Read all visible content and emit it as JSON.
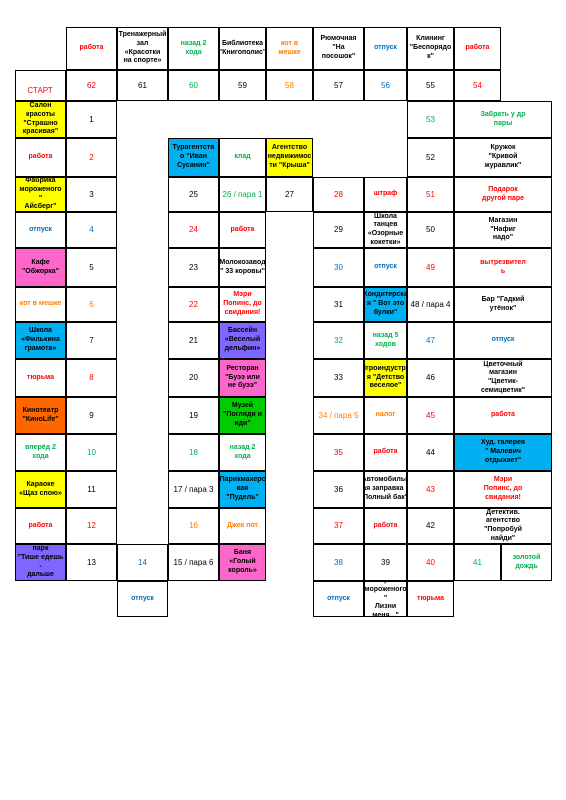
{
  "start_label": "СТАРТ",
  "colors": {
    "red": "#ff0000",
    "green": "#00b050",
    "orange": "#ff7f00",
    "blue": "#0070c0",
    "black": "#000000",
    "yellow": "#ffff00",
    "pink": "#ff66cc",
    "cyan": "#00b0f0",
    "purple": "#7f66ff",
    "orange_fill": "#ff6600",
    "green_fill": "#00cc00"
  },
  "cells": [
    {
      "text": "работа",
      "color": "red",
      "bold": true
    },
    {
      "text": "62",
      "color": "red"
    },
    {
      "text": "Тренажерный\nзал «Красотки\nна спорте»",
      "color": "black",
      "bold": true
    },
    {
      "text": "61",
      "color": "black"
    },
    {
      "text": "назад 2\nхода",
      "color": "green",
      "bold": true
    },
    {
      "text": "60",
      "color": "green"
    },
    {
      "text": "Библиотека\n\"Книгополис\"",
      "color": "black",
      "bold": true
    },
    {
      "text": "59",
      "color": "black"
    },
    {
      "text": "кот в\nмешке",
      "color": "orange",
      "bold": true
    },
    {
      "text": "58",
      "color": "orange"
    },
    {
      "text": "Рюмочная\n\"На\nпосошок\"",
      "color": "black",
      "bold": true
    },
    {
      "text": "57",
      "color": "black"
    },
    {
      "text": "отпуск",
      "color": "blue",
      "bold": true
    },
    {
      "text": "56",
      "color": "blue"
    },
    {
      "text": "Клининг\n\"Беспорядо\nк\"",
      "color": "black",
      "bold": true
    },
    {
      "text": "55",
      "color": "black"
    },
    {
      "text": "работа",
      "color": "red",
      "bold": true
    },
    {
      "text": "54",
      "color": "red"
    },
    {
      "text": "Салон\nкрасоты\n\"Страшно\nкрасивая\"",
      "color": "black",
      "bold": true,
      "fill": "yellow"
    },
    {
      "text": "1",
      "color": "black"
    },
    {
      "text": "53",
      "color": "green"
    },
    {
      "text": "Забрать у др\nпары",
      "color": "green",
      "bold": true
    },
    {
      "text": "работа",
      "color": "red",
      "bold": true
    },
    {
      "text": "2",
      "color": "red"
    },
    {
      "text": "Турагентств\nо \"Иван\nСусанин\"",
      "color": "black",
      "bold": true,
      "fill": "cyan"
    },
    {
      "text": "клад",
      "color": "green",
      "bold": true
    },
    {
      "text": "Агентство\nнедвижимос\nти \"Крыша\"",
      "color": "black",
      "bold": true,
      "fill": "yellow"
    },
    {
      "text": "52",
      "color": "black"
    },
    {
      "text": "Кружок\n\"Кривой\nжуравлик\"",
      "color": "black",
      "bold": true
    },
    {
      "text": "Фабрика\nмороженого \"\nАйсберг\"",
      "color": "black",
      "bold": true,
      "fill": "yellow"
    },
    {
      "text": "3",
      "color": "black"
    },
    {
      "text": "25",
      "color": "black"
    },
    {
      "text": "26 / пара 1",
      "color": "green"
    },
    {
      "text": "27",
      "color": "black"
    },
    {
      "text": "28",
      "color": "red"
    },
    {
      "text": "штраф",
      "color": "red",
      "bold": true
    },
    {
      "text": "51",
      "color": "red"
    },
    {
      "text": "Подарок\nдругой паре",
      "color": "red",
      "bold": true
    },
    {
      "text": "отпуск",
      "color": "blue",
      "bold": true
    },
    {
      "text": "4",
      "color": "blue"
    },
    {
      "text": "24",
      "color": "red"
    },
    {
      "text": "работа",
      "color": "red",
      "bold": true
    },
    {
      "text": "29",
      "color": "black"
    },
    {
      "text": "Школа\nтанцев\n«Озорные\nкокетки»",
      "color": "black",
      "bold": true
    },
    {
      "text": "50",
      "color": "black"
    },
    {
      "text": "Магазин\n\"Нафиг\nнадо\"",
      "color": "black",
      "bold": true
    },
    {
      "text": "Кафе\n\"Обжорка\"",
      "color": "black",
      "bold": true,
      "fill": "pink"
    },
    {
      "text": "5",
      "color": "black"
    },
    {
      "text": "23",
      "color": "black"
    },
    {
      "text": "Молокозавод\n\" 33 коровы\"",
      "color": "black",
      "bold": true
    },
    {
      "text": "30",
      "color": "blue"
    },
    {
      "text": "отпуск",
      "color": "blue",
      "bold": true
    },
    {
      "text": "49",
      "color": "red"
    },
    {
      "text": "вытрезвител\nь",
      "color": "red",
      "bold": true
    },
    {
      "text": "кот в мешке",
      "color": "orange",
      "bold": true
    },
    {
      "text": "6",
      "color": "orange"
    },
    {
      "text": "22",
      "color": "red"
    },
    {
      "text": "Мэри\nПопинс, до\nсвидания!",
      "color": "red",
      "bold": true
    },
    {
      "text": "31",
      "color": "black"
    },
    {
      "text": "Кондитерска\nя \" Вот это\nбулки\"",
      "color": "black",
      "bold": true,
      "fill": "cyan"
    },
    {
      "text": "48 / пара 4",
      "color": "black"
    },
    {
      "text": "Бар \"Гадкий\nутёнок\"",
      "color": "black",
      "bold": true
    },
    {
      "text": "Школа\n«Филькина\nграмота»",
      "color": "black",
      "bold": true,
      "fill": "cyan"
    },
    {
      "text": "7",
      "color": "black"
    },
    {
      "text": "21",
      "color": "black"
    },
    {
      "text": "Бассейн\n«Веселый\nдельфин»",
      "color": "black",
      "bold": true,
      "fill": "purple"
    },
    {
      "text": "32",
      "color": "green"
    },
    {
      "text": "назад 5\nходов",
      "color": "green",
      "bold": true
    },
    {
      "text": "47",
      "color": "blue"
    },
    {
      "text": "отпуск",
      "color": "blue",
      "bold": true
    },
    {
      "text": "тюрьма",
      "color": "red",
      "bold": true
    },
    {
      "text": "8",
      "color": "red"
    },
    {
      "text": "20",
      "color": "black"
    },
    {
      "text": "Ресторан\n\"Буээ или\nне буээ\"",
      "color": "black",
      "bold": true,
      "fill": "pink"
    },
    {
      "text": "33",
      "color": "black"
    },
    {
      "text": "Игроиндустри\nя \"Детство\nвеселое\"",
      "color": "black",
      "bold": true,
      "fill": "yellow"
    },
    {
      "text": "46",
      "color": "black"
    },
    {
      "text": "Цветочный\nмагазин\n\"Цветик-\nсемицветик\"",
      "color": "black",
      "bold": true
    },
    {
      "text": "Кинотеатр\n\"КиноLife\"",
      "color": "black",
      "bold": true,
      "fill": "orange_fill"
    },
    {
      "text": "9",
      "color": "black"
    },
    {
      "text": "19",
      "color": "black"
    },
    {
      "text": "Музей\n\"Погляди и\nиди\"",
      "color": "black",
      "bold": true,
      "fill": "green_fill"
    },
    {
      "text": "34 / пара 5",
      "color": "orange"
    },
    {
      "text": "налог",
      "color": "orange",
      "bold": true
    },
    {
      "text": "45",
      "color": "red"
    },
    {
      "text": "работа",
      "color": "red",
      "bold": true
    },
    {
      "text": "вперёд 2\nхода",
      "color": "green",
      "bold": true
    },
    {
      "text": "10",
      "color": "green"
    },
    {
      "text": "18",
      "color": "green"
    },
    {
      "text": "назад 2 хода",
      "color": "green",
      "bold": true
    },
    {
      "text": "35",
      "color": "red"
    },
    {
      "text": "работа",
      "color": "red",
      "bold": true
    },
    {
      "text": "44",
      "color": "black"
    },
    {
      "text": "Худ. галерея\n\" Малевич\nотдыхает\"",
      "color": "black",
      "bold": true,
      "fill": "cyan"
    },
    {
      "text": "Караоке\n«Щаз спою»",
      "color": "black",
      "bold": true,
      "fill": "yellow"
    },
    {
      "text": "11",
      "color": "black"
    },
    {
      "text": "17 / пара 3",
      "color": "black"
    },
    {
      "text": "Парикмахерс\nкая \"Пудель\"",
      "color": "black",
      "bold": true,
      "fill": "cyan"
    },
    {
      "text": "36",
      "color": "black"
    },
    {
      "text": "Автомобильн\nая заправка \"\nПолный бак\"",
      "color": "black",
      "bold": true
    },
    {
      "text": "43",
      "color": "red"
    },
    {
      "text": "Мэри\nПопинс, до\nсвидания!",
      "color": "red",
      "bold": true
    },
    {
      "text": "работа",
      "color": "red",
      "bold": true
    },
    {
      "text": "12",
      "color": "red"
    },
    {
      "text": "16",
      "color": "orange"
    },
    {
      "text": "Джек пот",
      "color": "orange",
      "bold": true
    },
    {
      "text": "37",
      "color": "red"
    },
    {
      "text": "работа",
      "color": "red",
      "bold": true
    },
    {
      "text": "42",
      "color": "black"
    },
    {
      "text": "Детектив.\nагентство\n\"Попробуй\nнайди\"",
      "color": "black",
      "bold": true
    },
    {
      "text": "Автобусный парк\n\"Тише едешь -\nдальше будешь\"",
      "color": "black",
      "bold": true,
      "fill": "purple"
    },
    {
      "text": "13",
      "color": "black"
    },
    {
      "text": "14",
      "color": "blue"
    },
    {
      "text": "15 / пара 6",
      "color": "black"
    },
    {
      "text": "Баня «Голый\nкороль»",
      "color": "black",
      "bold": true,
      "fill": "pink"
    },
    {
      "text": "38",
      "color": "blue"
    },
    {
      "text": "39",
      "color": "black"
    },
    {
      "text": "40",
      "color": "red"
    },
    {
      "text": "41",
      "color": "green"
    },
    {
      "text": "золотой\nдождь",
      "color": "green",
      "bold": true
    },
    {
      "text": "отпуск",
      "color": "blue",
      "bold": true
    },
    {
      "text": "отпуск",
      "color": "blue",
      "bold": true
    },
    {
      "text": "Ларёк\nмороженого \"\nЛизни\nменя...\"",
      "color": "black",
      "bold": true
    },
    {
      "text": "тюрьма",
      "color": "red",
      "bold": true
    }
  ]
}
